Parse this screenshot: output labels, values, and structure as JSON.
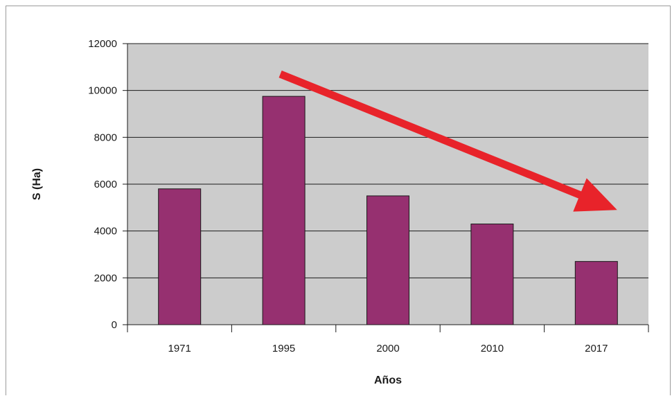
{
  "chart_data": {
    "type": "bar",
    "title": "",
    "xlabel": "Años",
    "ylabel": "S (Ha)",
    "categories": [
      "1971",
      "1995",
      "2000",
      "2010",
      "2017"
    ],
    "values": [
      5800,
      9750,
      5500,
      4300,
      2700
    ],
    "ylim": [
      0,
      12000
    ],
    "yticks": [
      0,
      2000,
      4000,
      6000,
      8000,
      10000,
      12000
    ],
    "grid": true,
    "legend": "none",
    "colors": {
      "bar": "#963070",
      "bar_stroke": "#1a1a1a",
      "plot_background": "#cccccc",
      "grid": "#1a1a1a",
      "trend_arrow": "#e8232a"
    },
    "annotations": [
      {
        "type": "trend-arrow",
        "direction": "decreasing",
        "from": {
          "x": "1995",
          "y": 10700
        },
        "to": {
          "x": "2017",
          "y": 4900
        }
      }
    ]
  }
}
